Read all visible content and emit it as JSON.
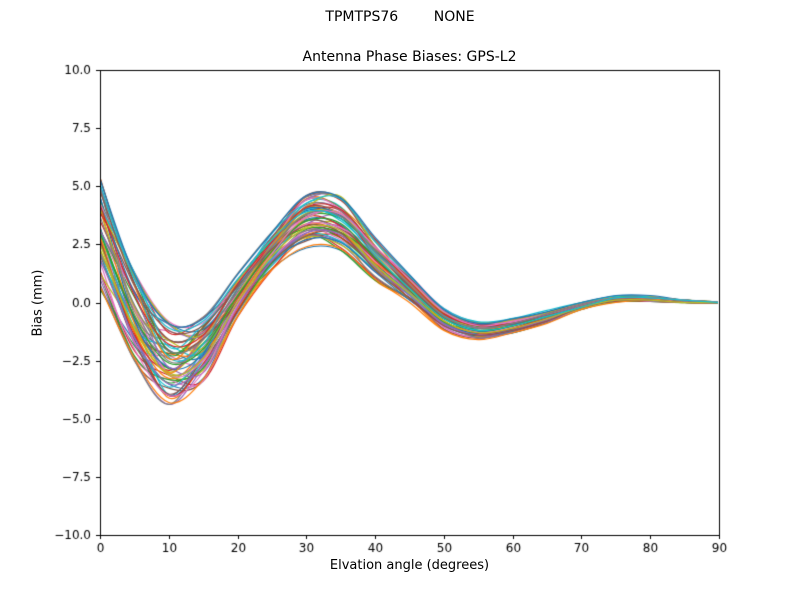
{
  "figure": {
    "suptitle": "TPMTPS76        NONE",
    "title": "Antenna Phase Biases: GPS-L2",
    "xlabel": "Elvation angle (degrees)",
    "ylabel": "Bias (mm)"
  },
  "chart_data": {
    "type": "line",
    "suptitle": "TPMTPS76        NONE",
    "title": "Antenna Phase Biases: GPS-L2",
    "xlabel": "Elvation angle (degrees)",
    "ylabel": "Bias (mm)",
    "xlim": [
      0,
      90
    ],
    "ylim": [
      -10,
      10
    ],
    "xticks": [
      0,
      10,
      20,
      30,
      40,
      50,
      60,
      70,
      80,
      90
    ],
    "xtick_labels": [
      "0",
      "10",
      "20",
      "30",
      "40",
      "50",
      "60",
      "70",
      "80",
      "90"
    ],
    "yticks": [
      -10,
      -7.5,
      -5,
      -2.5,
      0,
      2.5,
      5,
      7.5,
      10
    ],
    "ytick_labels": [
      "−10.0",
      "−7.5",
      "−5.0",
      "−2.5",
      "0.0",
      "2.5",
      "5.0",
      "7.5",
      "10.0"
    ],
    "grid": false,
    "legend": "none",
    "background": "#ffffff",
    "axis_color": "#000000",
    "x": [
      0,
      5,
      10,
      15,
      20,
      25,
      30,
      35,
      40,
      45,
      50,
      55,
      60,
      65,
      70,
      75,
      80,
      85,
      90
    ],
    "ensemble": {
      "line_count": 60,
      "mean": [
        3.0,
        -0.6,
        -2.6,
        -2.0,
        0.3,
        2.2,
        3.5,
        3.4,
        1.9,
        0.6,
        -0.7,
        -1.2,
        -1.0,
        -0.6,
        -0.15,
        0.15,
        0.15,
        0.05,
        0.0
      ],
      "upper": [
        5.3,
        1.2,
        -0.9,
        -0.7,
        1.2,
        3.0,
        4.6,
        4.5,
        2.8,
        1.2,
        -0.25,
        -0.85,
        -0.7,
        -0.35,
        0.0,
        0.27,
        0.25,
        0.11,
        0.03
      ],
      "lower": [
        0.7,
        -2.4,
        -4.3,
        -3.3,
        -0.6,
        1.4,
        2.4,
        2.3,
        1.0,
        0.0,
        -1.15,
        -1.55,
        -1.3,
        -0.85,
        -0.3,
        0.03,
        0.05,
        -0.01,
        -0.03
      ]
    },
    "series": [
      {
        "values": [
          5.3,
          1.2,
          -0.9,
          -0.7,
          1.2,
          3.0,
          4.6,
          4.5,
          2.8,
          1.2,
          -0.3,
          -0.9,
          -0.7,
          -0.4,
          0.0,
          0.3,
          0.3,
          0.1,
          0.0
        ]
      },
      {
        "values": [
          0.7,
          -2.4,
          -4.3,
          -3.3,
          -0.6,
          1.4,
          2.4,
          2.3,
          1.0,
          0.0,
          -1.2,
          -1.6,
          -1.3,
          -0.9,
          -0.3,
          0.0,
          0.1,
          0.0,
          0.0
        ]
      },
      {
        "values": [
          3.0,
          -0.6,
          -2.6,
          -2.0,
          0.3,
          2.2,
          3.5,
          3.4,
          1.9,
          0.6,
          -0.7,
          -1.2,
          -1.0,
          -0.6,
          -0.2,
          0.2,
          0.2,
          0.1,
          0.0
        ]
      },
      {
        "values": [
          4.2,
          0.3,
          -1.8,
          -1.4,
          0.8,
          2.6,
          4.1,
          4.0,
          2.4,
          0.9,
          -0.5,
          -1.0,
          -0.9,
          -0.5,
          -0.1,
          0.2,
          0.2,
          0.1,
          0.0
        ]
      },
      {
        "values": [
          1.9,
          -1.5,
          -3.5,
          -2.7,
          -0.2,
          1.8,
          3.0,
          2.9,
          1.5,
          0.3,
          -0.9,
          -1.4,
          -1.2,
          -0.7,
          -0.2,
          0.1,
          0.1,
          0.0,
          0.0
        ]
      },
      {
        "values": [
          4.8,
          0.8,
          -1.2,
          -1.0,
          0.7,
          2.3,
          3.3,
          3.0,
          1.4,
          0.2,
          -1.0,
          -1.4,
          -1.2,
          -0.8,
          -0.2,
          0.1,
          0.1,
          0.0,
          0.0
        ]
      },
      {
        "values": [
          1.2,
          -2.0,
          -4.0,
          -3.0,
          -0.1,
          2.1,
          3.7,
          3.8,
          2.4,
          1.0,
          -0.4,
          -1.0,
          -0.8,
          -0.5,
          -0.1,
          0.2,
          0.2,
          0.1,
          0.0
        ]
      },
      {
        "values": [
          3.7,
          -0.1,
          -2.1,
          -1.6,
          0.6,
          2.4,
          3.8,
          3.7,
          2.2,
          0.8,
          -0.6,
          -1.1,
          -0.9,
          -0.5,
          -0.1,
          0.2,
          0.2,
          0.1,
          0.0
        ]
      },
      {
        "values": [
          2.3,
          -1.1,
          -3.1,
          -2.4,
          0.0,
          2.0,
          3.2,
          3.1,
          1.6,
          0.4,
          -0.8,
          -1.3,
          -1.1,
          -0.7,
          -0.2,
          0.1,
          0.1,
          0.0,
          0.0
        ]
      },
      {
        "values": [
          5.1,
          1.0,
          -1.1,
          -0.8,
          1.0,
          2.7,
          3.9,
          3.6,
          2.0,
          0.6,
          -0.7,
          -1.2,
          -1.0,
          -0.6,
          -0.2,
          0.2,
          0.2,
          0.1,
          0.0
        ]
      }
    ],
    "colors": [
      "#1f77b4",
      "#ff7f0e",
      "#2ca02c",
      "#d62728",
      "#9467bd",
      "#8c564b",
      "#e377c2",
      "#7f7f7f",
      "#bcbd22",
      "#17becf"
    ]
  }
}
